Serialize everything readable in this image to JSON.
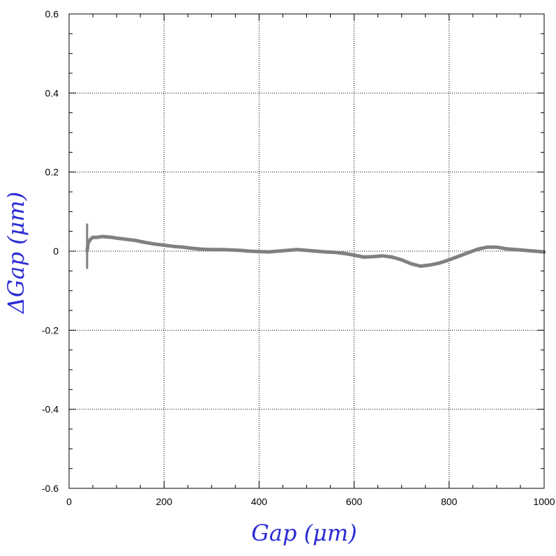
{
  "chart_data": {
    "type": "line",
    "title": "",
    "xlabel": "Gap  (μm)",
    "ylabel": "ΔGap  (μm)",
    "xlim": [
      0,
      1000
    ],
    "ylim": [
      -0.6,
      0.6
    ],
    "x_ticks": [
      0,
      200,
      400,
      600,
      800,
      1000
    ],
    "y_ticks": [
      -0.6,
      -0.4,
      -0.2,
      0,
      0.2,
      0.4,
      0.6
    ],
    "x_tick_labels": [
      "0",
      "200",
      "400",
      "600",
      "800",
      "1000"
    ],
    "y_tick_labels": [
      "-0.6",
      "-0.4",
      "-0.2",
      "0",
      "0.2",
      "0.4",
      "0.6"
    ],
    "grid": true,
    "grid_style": "dotted",
    "series": [
      {
        "color": "#808080",
        "x": [
          38,
          40,
          45,
          50,
          60,
          70,
          80,
          90,
          100,
          120,
          140,
          160,
          180,
          200,
          220,
          240,
          260,
          280,
          300,
          320,
          340,
          360,
          380,
          400,
          420,
          440,
          460,
          480,
          500,
          520,
          540,
          560,
          580,
          600,
          620,
          640,
          660,
          680,
          700,
          720,
          740,
          760,
          780,
          800,
          820,
          840,
          860,
          880,
          900,
          920,
          940,
          960,
          980,
          1000
        ],
        "y": [
          0.0,
          0.02,
          0.03,
          0.035,
          0.035,
          0.037,
          0.036,
          0.035,
          0.033,
          0.03,
          0.027,
          0.022,
          0.018,
          0.015,
          0.012,
          0.01,
          0.007,
          0.005,
          0.004,
          0.004,
          0.003,
          0.002,
          0.0,
          -0.001,
          -0.002,
          0.0,
          0.002,
          0.004,
          0.002,
          0.0,
          -0.002,
          -0.003,
          -0.006,
          -0.01,
          -0.015,
          -0.014,
          -0.012,
          -0.015,
          -0.022,
          -0.032,
          -0.038,
          -0.035,
          -0.03,
          -0.022,
          -0.013,
          -0.004,
          0.005,
          0.01,
          0.01,
          0.006,
          0.004,
          0.002,
          0.0,
          -0.002
        ]
      }
    ],
    "spike": {
      "x": 38,
      "ymin": -0.045,
      "ymax": 0.07
    }
  }
}
